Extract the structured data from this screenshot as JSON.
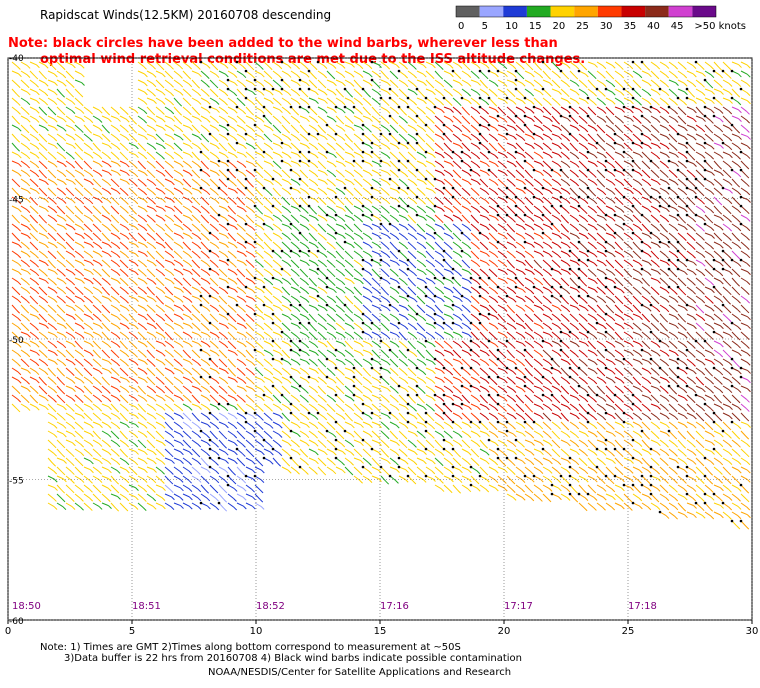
{
  "header": {
    "title": "Rapidscat Winds(12.5KM) 20160708 descending",
    "note_line1": "Note: black circles have been added to the wind barbs, wherever less than",
    "note_line2": "optimal wind retrieval conditions are met due to the ISS altitude changes."
  },
  "legend": {
    "labels": [
      "0",
      "5",
      "10",
      "15",
      "20",
      "25",
      "30",
      "35",
      "40",
      "45",
      ">50 knots"
    ],
    "colors": [
      "#606060",
      "#9aa6ff",
      "#1f3bd6",
      "#22aa22",
      "#ffd200",
      "#ffa500",
      "#ff3a00",
      "#c80000",
      "#8b2a1a",
      "#d040d0",
      "#6a0a8a"
    ]
  },
  "map": {
    "lat_labels": [
      "-40",
      "-45",
      "-50",
      "-55",
      "-60"
    ],
    "lon_labels": [
      "0",
      "5",
      "10",
      "15",
      "20",
      "25",
      "30"
    ],
    "time_labels": [
      "18:50",
      "18:51",
      "18:52",
      "17:16",
      "17:17",
      "17:18"
    ],
    "time_color": "#800080"
  },
  "footer": {
    "note1": "Note: 1) Times are GMT 2)Times along bottom correspond to measurement at ~50S",
    "note2": "3)Data buffer is 22 hrs from 20160708 4) Black wind barbs indicate possible contamination",
    "credit": "NOAA/NESDIS/Center for Satellite Applications and Research"
  }
}
